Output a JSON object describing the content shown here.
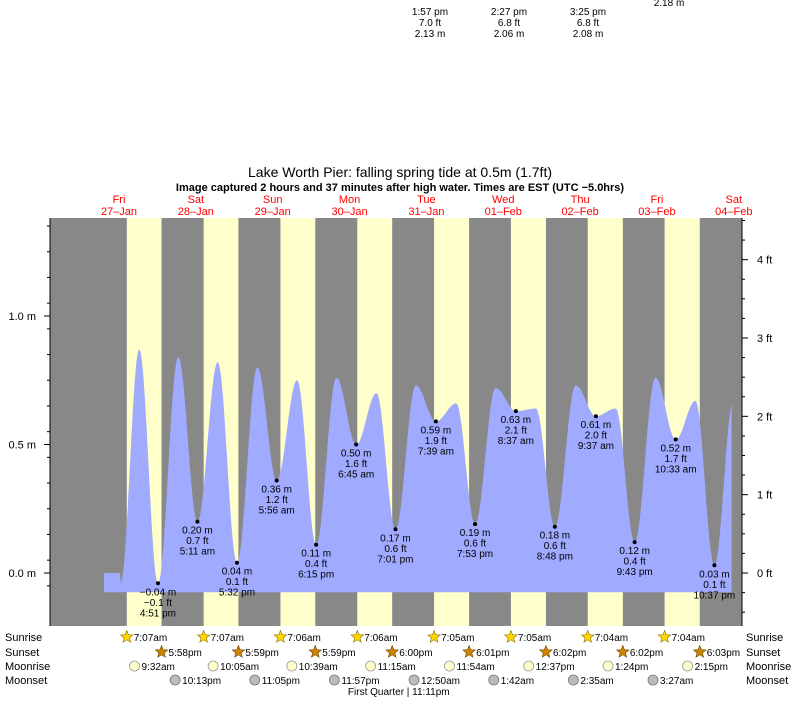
{
  "header": {
    "title": "Lake Worth Pier: falling  spring tide at 0.5m (1.7ft)",
    "subtitle": "Image captured 2 hours and 37 minutes after high water. Times are EST (UTC −5.0hrs)"
  },
  "colors": {
    "night": "#888888",
    "day": "#ffffcc",
    "tide_fill": "#a0aaff",
    "day_label": "#ff0000",
    "sun_icon": "#ffd700",
    "sunset_icon": "#cc8400",
    "moonrise_icon": "#ffffcc",
    "moonset_icon": "#bbbbbb"
  },
  "top_fragments": [
    {
      "lines": [
        "1:57 pm",
        "7.0 ft",
        "2.13 m"
      ],
      "x": 430
    },
    {
      "lines": [
        "2:27 pm",
        "6.8 ft",
        "2.06 m"
      ],
      "x": 509
    },
    {
      "lines": [
        "3:25 pm",
        "6.8 ft",
        "2.08 m"
      ],
      "x": 588
    },
    {
      "lines": [
        "2.18 m"
      ],
      "x": 669
    }
  ],
  "chart_data": {
    "type": "area",
    "title": "Lake Worth Pier: falling  spring tide at 0.5m (1.7ft)",
    "subtitle": "Image captured 2 hours and 37 minutes after high water. Times are EST (UTC −5.0hrs)",
    "x_axis": "time",
    "days": [
      {
        "dow": "Fri",
        "date": "27–Jan"
      },
      {
        "dow": "Sat",
        "date": "28–Jan"
      },
      {
        "dow": "Sun",
        "date": "29–Jan"
      },
      {
        "dow": "Mon",
        "date": "30–Jan"
      },
      {
        "dow": "Tue",
        "date": "31–Jan"
      },
      {
        "dow": "Wed",
        "date": "01–Feb"
      },
      {
        "dow": "Thu",
        "date": "02–Feb"
      },
      {
        "dow": "Fri",
        "date": "03–Feb"
      },
      {
        "dow": "Sat",
        "date": "04–Feb"
      }
    ],
    "left_axis": {
      "unit": "m",
      "ticks": [
        "0.0 m",
        "0.5 m",
        "1.0 m"
      ],
      "values": [
        0,
        0.5,
        1.0
      ]
    },
    "right_axis": {
      "unit": "ft",
      "ticks": [
        "0 ft",
        "1 ft",
        "2 ft",
        "3 ft",
        "4 ft"
      ],
      "values": [
        0,
        1,
        2,
        3,
        4
      ]
    },
    "ylim_m": [
      -0.075,
      1.385
    ],
    "low_tides": [
      {
        "day": 0,
        "time": "4:51 pm",
        "t": 16.85,
        "m": -0.04,
        "ft": -0.1,
        "label_m": "−0.04 m",
        "label_ft": "−0.1 ft"
      },
      {
        "day": 1,
        "time": "5:11 am",
        "t": 5.18,
        "m": 0.2,
        "ft": 0.7,
        "label_m": "0.20 m",
        "label_ft": "0.7 ft"
      },
      {
        "day": 1,
        "time": "5:32 pm",
        "t": 17.53,
        "m": 0.04,
        "ft": 0.1,
        "label_m": "0.04 m",
        "label_ft": "0.1 ft"
      },
      {
        "day": 2,
        "time": "5:56 am",
        "t": 5.93,
        "m": 0.36,
        "ft": 1.2,
        "label_m": "0.36 m",
        "label_ft": "1.2 ft"
      },
      {
        "day": 2,
        "time": "6:15 pm",
        "t": 18.25,
        "m": 0.11,
        "ft": 0.4,
        "label_m": "0.11 m",
        "label_ft": "0.4 ft"
      },
      {
        "day": 3,
        "time": "6:45 am",
        "t": 6.75,
        "m": 0.5,
        "ft": 1.6,
        "label_m": "0.50 m",
        "label_ft": "1.6 ft"
      },
      {
        "day": 3,
        "time": "7:01 pm",
        "t": 19.02,
        "m": 0.17,
        "ft": 0.6,
        "label_m": "0.17 m",
        "label_ft": "0.6 ft"
      },
      {
        "day": 4,
        "time": "7:39 am",
        "t": 7.65,
        "m": 0.59,
        "ft": 1.9,
        "label_m": "0.59 m",
        "label_ft": "1.9 ft"
      },
      {
        "day": 4,
        "time": "7:53 pm",
        "t": 19.88,
        "m": 0.19,
        "ft": 0.6,
        "label_m": "0.19 m",
        "label_ft": "0.6 ft"
      },
      {
        "day": 5,
        "time": "8:37 am",
        "t": 8.62,
        "m": 0.63,
        "ft": 2.1,
        "label_m": "0.63 m",
        "label_ft": "2.1 ft"
      },
      {
        "day": 5,
        "time": "8:48 pm",
        "t": 20.8,
        "m": 0.18,
        "ft": 0.6,
        "label_m": "0.18 m",
        "label_ft": "0.6 ft"
      },
      {
        "day": 6,
        "time": "9:37 am",
        "t": 9.62,
        "m": 0.61,
        "ft": 2.0,
        "label_m": "0.61 m",
        "label_ft": "2.0 ft"
      },
      {
        "day": 6,
        "time": "9:43 pm",
        "t": 21.72,
        "m": 0.12,
        "ft": 0.4,
        "label_m": "0.12 m",
        "label_ft": "0.4 ft"
      },
      {
        "day": 7,
        "time": "10:33 am",
        "t": 10.55,
        "m": 0.52,
        "ft": 1.7,
        "label_m": "0.52 m",
        "label_ft": "1.7 ft"
      },
      {
        "day": 7,
        "time": "10:37 pm",
        "t": 22.62,
        "m": 0.03,
        "ft": 0.1,
        "label_m": "0.03 m",
        "label_ft": "0.1 ft"
      }
    ],
    "high_tides_est": [
      {
        "day": 0,
        "t": 11.0,
        "m": 0.87
      },
      {
        "day": 0,
        "t": 23.2,
        "m": 0.84
      },
      {
        "day": 1,
        "t": 11.5,
        "m": 0.82
      },
      {
        "day": 1,
        "t": 23.9,
        "m": 0.8
      },
      {
        "day": 2,
        "t": 12.3,
        "m": 0.75
      },
      {
        "day": 3,
        "t": 0.6,
        "m": 0.76
      },
      {
        "day": 3,
        "t": 13.1,
        "m": 0.7
      },
      {
        "day": 4,
        "t": 1.4,
        "m": 0.73
      },
      {
        "day": 4,
        "t": 14.0,
        "m": 0.66
      },
      {
        "day": 5,
        "t": 2.3,
        "m": 0.72
      },
      {
        "day": 5,
        "t": 14.9,
        "m": 0.64
      },
      {
        "day": 6,
        "t": 3.3,
        "m": 0.73
      },
      {
        "day": 6,
        "t": 15.8,
        "m": 0.64
      },
      {
        "day": 7,
        "t": 4.2,
        "m": 0.76
      },
      {
        "day": 7,
        "t": 16.7,
        "m": 0.67
      }
    ],
    "series_end": {
      "day": 8,
      "t": 4.0
    },
    "series_start": {
      "day": 0,
      "t": 0.0
    },
    "sun": [
      {
        "sunrise": "7:07am",
        "sunset": "5:58pm",
        "rise_t": 7.12,
        "set_t": 17.97
      },
      {
        "sunrise": "7:07am",
        "sunset": "5:59pm",
        "rise_t": 7.12,
        "set_t": 17.98
      },
      {
        "sunrise": "7:06am",
        "sunset": "5:59pm",
        "rise_t": 7.1,
        "set_t": 17.98
      },
      {
        "sunrise": "7:06am",
        "sunset": "6:00pm",
        "rise_t": 7.1,
        "set_t": 18.0
      },
      {
        "sunrise": "7:05am",
        "sunset": "6:01pm",
        "rise_t": 7.08,
        "set_t": 18.02
      },
      {
        "sunrise": "7:05am",
        "sunset": "6:02pm",
        "rise_t": 7.08,
        "set_t": 18.03
      },
      {
        "sunrise": "7:04am",
        "sunset": "6:02pm",
        "rise_t": 7.07,
        "set_t": 18.03
      },
      {
        "sunrise": "7:04am",
        "sunset": "6:03pm",
        "rise_t": 7.07,
        "set_t": 18.05
      }
    ],
    "moonrise": [
      {
        "day": 0,
        "time": "9:32am",
        "t": 9.53
      },
      {
        "day": 1,
        "time": "10:05am",
        "t": 10.08
      },
      {
        "day": 2,
        "time": "10:39am",
        "t": 10.65
      },
      {
        "day": 3,
        "time": "11:15am",
        "t": 11.25
      },
      {
        "day": 4,
        "time": "11:54am",
        "t": 11.9
      },
      {
        "day": 5,
        "time": "12:37pm",
        "t": 12.62
      },
      {
        "day": 6,
        "time": "1:24pm",
        "t": 13.4
      },
      {
        "day": 7,
        "time": "2:15pm",
        "t": 14.25
      }
    ],
    "moonset": [
      {
        "day": 0,
        "time": "10:13pm",
        "t": 22.22
      },
      {
        "day": 1,
        "time": "11:05pm",
        "t": 23.08
      },
      {
        "day": 2,
        "time": "11:57pm",
        "t": 23.95
      },
      {
        "day": 4,
        "time": "12:50am",
        "t": 0.83
      },
      {
        "day": 5,
        "time": "1:42am",
        "t": 1.7
      },
      {
        "day": 6,
        "time": "2:35am",
        "t": 2.58
      },
      {
        "day": 7,
        "time": "3:27am",
        "t": 3.45
      }
    ],
    "moon_phase": {
      "text": "First Quarter | 11:11pm",
      "day": 3,
      "t": 23.18
    },
    "row_labels": {
      "sunrise": "Sunrise",
      "sunset": "Sunset",
      "moonrise": "Moonrise",
      "moonset": "Moonset"
    },
    "grid": false,
    "legend": "none"
  }
}
